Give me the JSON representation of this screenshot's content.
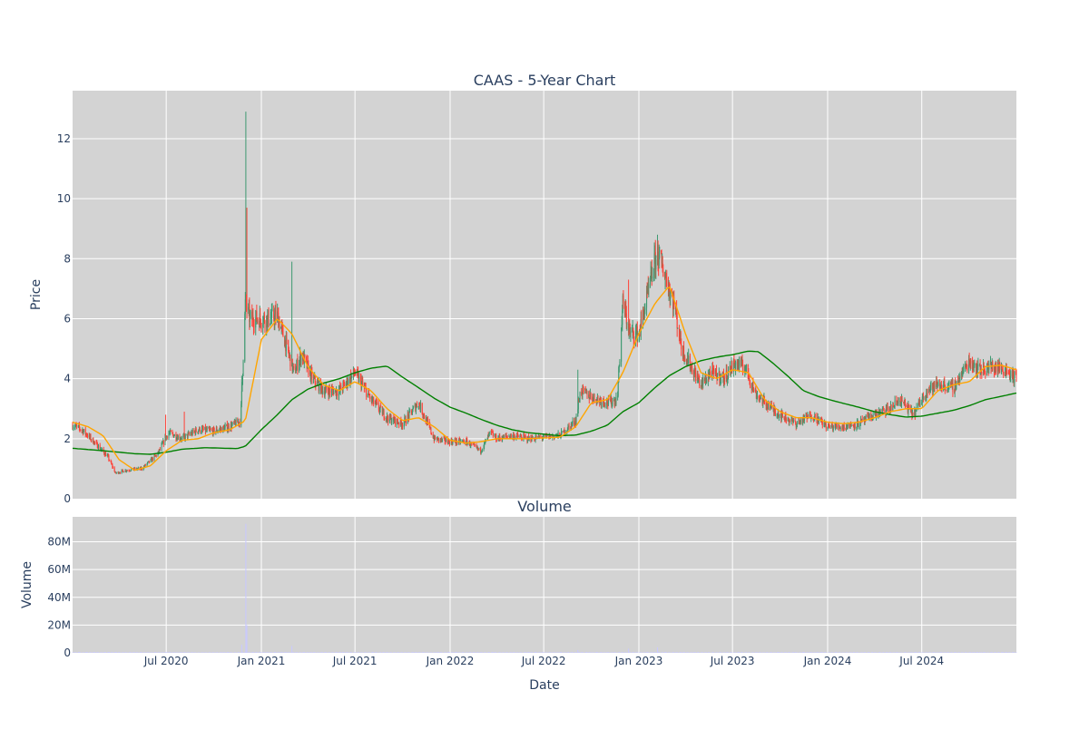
{
  "chart_data": [
    {
      "type": "candlestick",
      "title": "CAAS - 5-Year Chart",
      "ylabel": "Price",
      "xlabel": "",
      "date_range": [
        "2020-01-02",
        "2024-12-31"
      ],
      "ylim": [
        0,
        13.6
      ],
      "yticks": [
        0,
        2,
        4,
        6,
        8,
        10,
        12
      ],
      "grid": true,
      "plot_background": "#d3d3d3",
      "colors": {
        "up": "#3d9970",
        "down": "#ff4136",
        "ma_short": "#ffa500",
        "ma_long": "#008000"
      },
      "price_keypoints": [
        [
          "2020-01-02",
          2.45
        ],
        [
          "2020-01-20",
          2.3
        ],
        [
          "2020-02-15",
          1.85
        ],
        [
          "2020-03-10",
          1.4
        ],
        [
          "2020-03-25",
          0.85
        ],
        [
          "2020-04-15",
          0.95
        ],
        [
          "2020-05-15",
          1.0
        ],
        [
          "2020-06-15",
          1.5
        ],
        [
          "2020-07-05",
          2.2
        ],
        [
          "2020-08-01",
          2.0
        ],
        [
          "2020-09-01",
          2.3
        ],
        [
          "2020-10-01",
          2.25
        ],
        [
          "2020-11-01",
          2.4
        ],
        [
          "2020-11-22",
          2.6
        ],
        [
          "2020-12-01",
          6.5
        ],
        [
          "2020-12-10",
          6.0
        ],
        [
          "2021-01-15",
          6.0
        ],
        [
          "2021-02-01",
          6.1
        ],
        [
          "2021-02-20",
          5.0
        ],
        [
          "2021-03-05",
          4.2
        ],
        [
          "2021-03-20",
          4.8
        ],
        [
          "2021-04-10",
          4.0
        ],
        [
          "2021-05-01",
          3.6
        ],
        [
          "2021-06-01",
          3.6
        ],
        [
          "2021-07-01",
          4.2
        ],
        [
          "2021-08-01",
          3.3
        ],
        [
          "2021-09-01",
          2.7
        ],
        [
          "2021-10-01",
          2.5
        ],
        [
          "2021-11-01",
          3.2
        ],
        [
          "2021-12-01",
          2.0
        ],
        [
          "2022-01-01",
          1.9
        ],
        [
          "2022-02-01",
          1.9
        ],
        [
          "2022-03-01",
          1.6
        ],
        [
          "2022-03-20",
          2.2
        ],
        [
          "2022-04-01",
          2.0
        ],
        [
          "2022-05-01",
          2.1
        ],
        [
          "2022-06-01",
          2.0
        ],
        [
          "2022-08-01",
          2.1
        ],
        [
          "2022-09-01",
          2.6
        ],
        [
          "2022-09-10",
          3.6
        ],
        [
          "2022-10-01",
          3.4
        ],
        [
          "2022-11-01",
          3.2
        ],
        [
          "2022-11-20",
          3.3
        ],
        [
          "2022-12-01",
          6.5
        ],
        [
          "2022-12-15",
          5.5
        ],
        [
          "2023-01-01",
          5.5
        ],
        [
          "2023-02-05",
          8.2
        ],
        [
          "2023-02-20",
          7.5
        ],
        [
          "2023-03-10",
          6.5
        ],
        [
          "2023-03-25",
          5.0
        ],
        [
          "2023-04-15",
          4.3
        ],
        [
          "2023-05-01",
          3.8
        ],
        [
          "2023-05-20",
          4.2
        ],
        [
          "2023-06-15",
          4.0
        ],
        [
          "2023-07-05",
          4.5
        ],
        [
          "2023-07-25",
          4.4
        ],
        [
          "2023-08-15",
          3.5
        ],
        [
          "2023-09-01",
          3.2
        ],
        [
          "2023-10-01",
          2.8
        ],
        [
          "2023-11-01",
          2.5
        ],
        [
          "2023-12-01",
          2.8
        ],
        [
          "2024-01-01",
          2.4
        ],
        [
          "2024-02-01",
          2.4
        ],
        [
          "2024-03-01",
          2.5
        ],
        [
          "2024-04-01",
          2.8
        ],
        [
          "2024-05-01",
          3.0
        ],
        [
          "2024-05-20",
          3.3
        ],
        [
          "2024-06-15",
          2.8
        ],
        [
          "2024-07-10",
          3.6
        ],
        [
          "2024-08-01",
          3.8
        ],
        [
          "2024-09-01",
          3.7
        ],
        [
          "2024-10-01",
          4.6
        ],
        [
          "2024-10-20",
          4.3
        ],
        [
          "2024-11-15",
          4.4
        ],
        [
          "2024-12-10",
          4.3
        ],
        [
          "2024-12-31",
          4.0
        ]
      ],
      "spikes": [
        [
          "2020-06-30",
          2.8
        ],
        [
          "2020-08-05",
          2.9
        ],
        [
          "2020-11-24",
          4.1
        ],
        [
          "2020-12-02",
          12.9
        ],
        [
          "2020-12-04",
          9.7
        ],
        [
          "2021-03-01",
          7.9
        ],
        [
          "2021-06-20",
          4.6
        ],
        [
          "2022-09-05",
          4.3
        ],
        [
          "2022-12-12",
          7.3
        ],
        [
          "2023-02-06",
          8.8
        ]
      ],
      "ma_short_keypoints": [
        [
          "2020-01-02",
          2.55
        ],
        [
          "2020-02-01",
          2.4
        ],
        [
          "2020-03-01",
          2.1
        ],
        [
          "2020-04-01",
          1.3
        ],
        [
          "2020-05-01",
          0.95
        ],
        [
          "2020-06-01",
          1.1
        ],
        [
          "2020-07-01",
          1.6
        ],
        [
          "2020-08-01",
          1.95
        ],
        [
          "2020-09-01",
          2.0
        ],
        [
          "2020-10-01",
          2.2
        ],
        [
          "2020-11-01",
          2.3
        ],
        [
          "2020-12-01",
          2.6
        ],
        [
          "2021-01-01",
          5.3
        ],
        [
          "2021-02-01",
          6.0
        ],
        [
          "2021-03-01",
          5.5
        ],
        [
          "2021-04-01",
          4.4
        ],
        [
          "2021-05-01",
          3.8
        ],
        [
          "2021-06-01",
          3.6
        ],
        [
          "2021-07-01",
          3.9
        ],
        [
          "2021-08-01",
          3.6
        ],
        [
          "2021-09-01",
          3.0
        ],
        [
          "2021-10-01",
          2.6
        ],
        [
          "2021-11-01",
          2.7
        ],
        [
          "2021-12-01",
          2.4
        ],
        [
          "2022-01-01",
          1.95
        ],
        [
          "2022-02-01",
          1.85
        ],
        [
          "2022-03-01",
          1.9
        ],
        [
          "2022-04-01",
          2.0
        ],
        [
          "2022-06-01",
          2.0
        ],
        [
          "2022-08-01",
          2.05
        ],
        [
          "2022-09-01",
          2.4
        ],
        [
          "2022-10-01",
          3.2
        ],
        [
          "2022-11-01",
          3.3
        ],
        [
          "2022-12-01",
          4.2
        ],
        [
          "2023-01-01",
          5.5
        ],
        [
          "2023-02-01",
          6.5
        ],
        [
          "2023-03-01",
          7.1
        ],
        [
          "2023-04-01",
          5.5
        ],
        [
          "2023-05-01",
          4.2
        ],
        [
          "2023-06-01",
          4.0
        ],
        [
          "2023-07-01",
          4.3
        ],
        [
          "2023-08-01",
          4.2
        ],
        [
          "2023-09-01",
          3.3
        ],
        [
          "2023-10-01",
          2.9
        ],
        [
          "2023-11-01",
          2.7
        ],
        [
          "2023-12-01",
          2.7
        ],
        [
          "2024-01-01",
          2.55
        ],
        [
          "2024-02-01",
          2.5
        ],
        [
          "2024-03-01",
          2.55
        ],
        [
          "2024-04-01",
          2.7
        ],
        [
          "2024-05-01",
          2.9
        ],
        [
          "2024-06-01",
          3.0
        ],
        [
          "2024-07-01",
          3.0
        ],
        [
          "2024-08-01",
          3.6
        ],
        [
          "2024-09-01",
          3.8
        ],
        [
          "2024-10-01",
          3.9
        ],
        [
          "2024-11-01",
          4.4
        ],
        [
          "2024-12-01",
          4.45
        ],
        [
          "2024-12-31",
          4.3
        ]
      ],
      "ma_long_keypoints": [
        [
          "2020-01-02",
          1.68
        ],
        [
          "2020-03-01",
          1.6
        ],
        [
          "2020-05-01",
          1.5
        ],
        [
          "2020-06-01",
          1.48
        ],
        [
          "2020-07-01",
          1.55
        ],
        [
          "2020-08-01",
          1.65
        ],
        [
          "2020-09-15",
          1.7
        ],
        [
          "2020-11-15",
          1.67
        ],
        [
          "2020-12-01",
          1.75
        ],
        [
          "2021-01-01",
          2.3
        ],
        [
          "2021-02-01",
          2.8
        ],
        [
          "2021-03-01",
          3.3
        ],
        [
          "2021-04-01",
          3.65
        ],
        [
          "2021-05-01",
          3.85
        ],
        [
          "2021-06-01",
          4.0
        ],
        [
          "2021-07-01",
          4.2
        ],
        [
          "2021-08-01",
          4.35
        ],
        [
          "2021-09-01",
          4.42
        ],
        [
          "2021-10-01",
          4.05
        ],
        [
          "2021-11-01",
          3.7
        ],
        [
          "2021-12-01",
          3.35
        ],
        [
          "2022-01-01",
          3.05
        ],
        [
          "2022-02-01",
          2.85
        ],
        [
          "2022-03-01",
          2.65
        ],
        [
          "2022-04-01",
          2.45
        ],
        [
          "2022-05-01",
          2.3
        ],
        [
          "2022-06-01",
          2.2
        ],
        [
          "2022-08-01",
          2.1
        ],
        [
          "2022-09-01",
          2.12
        ],
        [
          "2022-10-01",
          2.25
        ],
        [
          "2022-11-01",
          2.45
        ],
        [
          "2022-12-01",
          2.9
        ],
        [
          "2023-01-01",
          3.2
        ],
        [
          "2023-02-01",
          3.7
        ],
        [
          "2023-03-01",
          4.1
        ],
        [
          "2023-04-01",
          4.4
        ],
        [
          "2023-05-01",
          4.6
        ],
        [
          "2023-06-01",
          4.72
        ],
        [
          "2023-07-01",
          4.8
        ],
        [
          "2023-08-01",
          4.92
        ],
        [
          "2023-08-20",
          4.9
        ],
        [
          "2023-09-15",
          4.55
        ],
        [
          "2023-10-15",
          4.1
        ],
        [
          "2023-11-15",
          3.6
        ],
        [
          "2023-12-15",
          3.4
        ],
        [
          "2024-01-15",
          3.25
        ],
        [
          "2024-03-01",
          3.05
        ],
        [
          "2024-04-01",
          2.9
        ],
        [
          "2024-05-01",
          2.8
        ],
        [
          "2024-06-01",
          2.72
        ],
        [
          "2024-07-01",
          2.75
        ],
        [
          "2024-08-01",
          2.85
        ],
        [
          "2024-09-01",
          2.95
        ],
        [
          "2024-10-01",
          3.1
        ],
        [
          "2024-11-01",
          3.3
        ],
        [
          "2024-12-31",
          3.52
        ]
      ]
    },
    {
      "type": "bar",
      "title": "Volume",
      "ylabel": "Volume",
      "xlabel": "Date",
      "ylim": [
        0,
        98000000
      ],
      "yticks": [
        0,
        20000000,
        40000000,
        60000000,
        80000000
      ],
      "ytick_labels": [
        "0",
        "20M",
        "40M",
        "60M",
        "80M"
      ],
      "xticks": [
        "2020-07-01",
        "2021-01-01",
        "2021-07-01",
        "2022-01-01",
        "2022-07-01",
        "2023-01-01",
        "2023-07-01",
        "2024-01-01",
        "2024-07-01"
      ],
      "xtick_labels": [
        "Jul 2020",
        "Jan 2021",
        "Jul 2021",
        "Jan 2022",
        "Jul 2022",
        "Jan 2023",
        "Jul 2023",
        "Jan 2024",
        "Jul 2024"
      ],
      "bar_color": "#c8c8ff",
      "baseline_volume": 400000,
      "volume_spikes": [
        [
          "2020-12-02",
          93000000
        ],
        [
          "2020-12-04",
          20000000
        ],
        [
          "2020-11-24",
          6000000
        ],
        [
          "2021-03-01",
          5000000
        ],
        [
          "2022-09-05",
          2000000
        ],
        [
          "2022-12-12",
          3000000
        ],
        [
          "2023-02-06",
          4000000
        ]
      ]
    }
  ]
}
